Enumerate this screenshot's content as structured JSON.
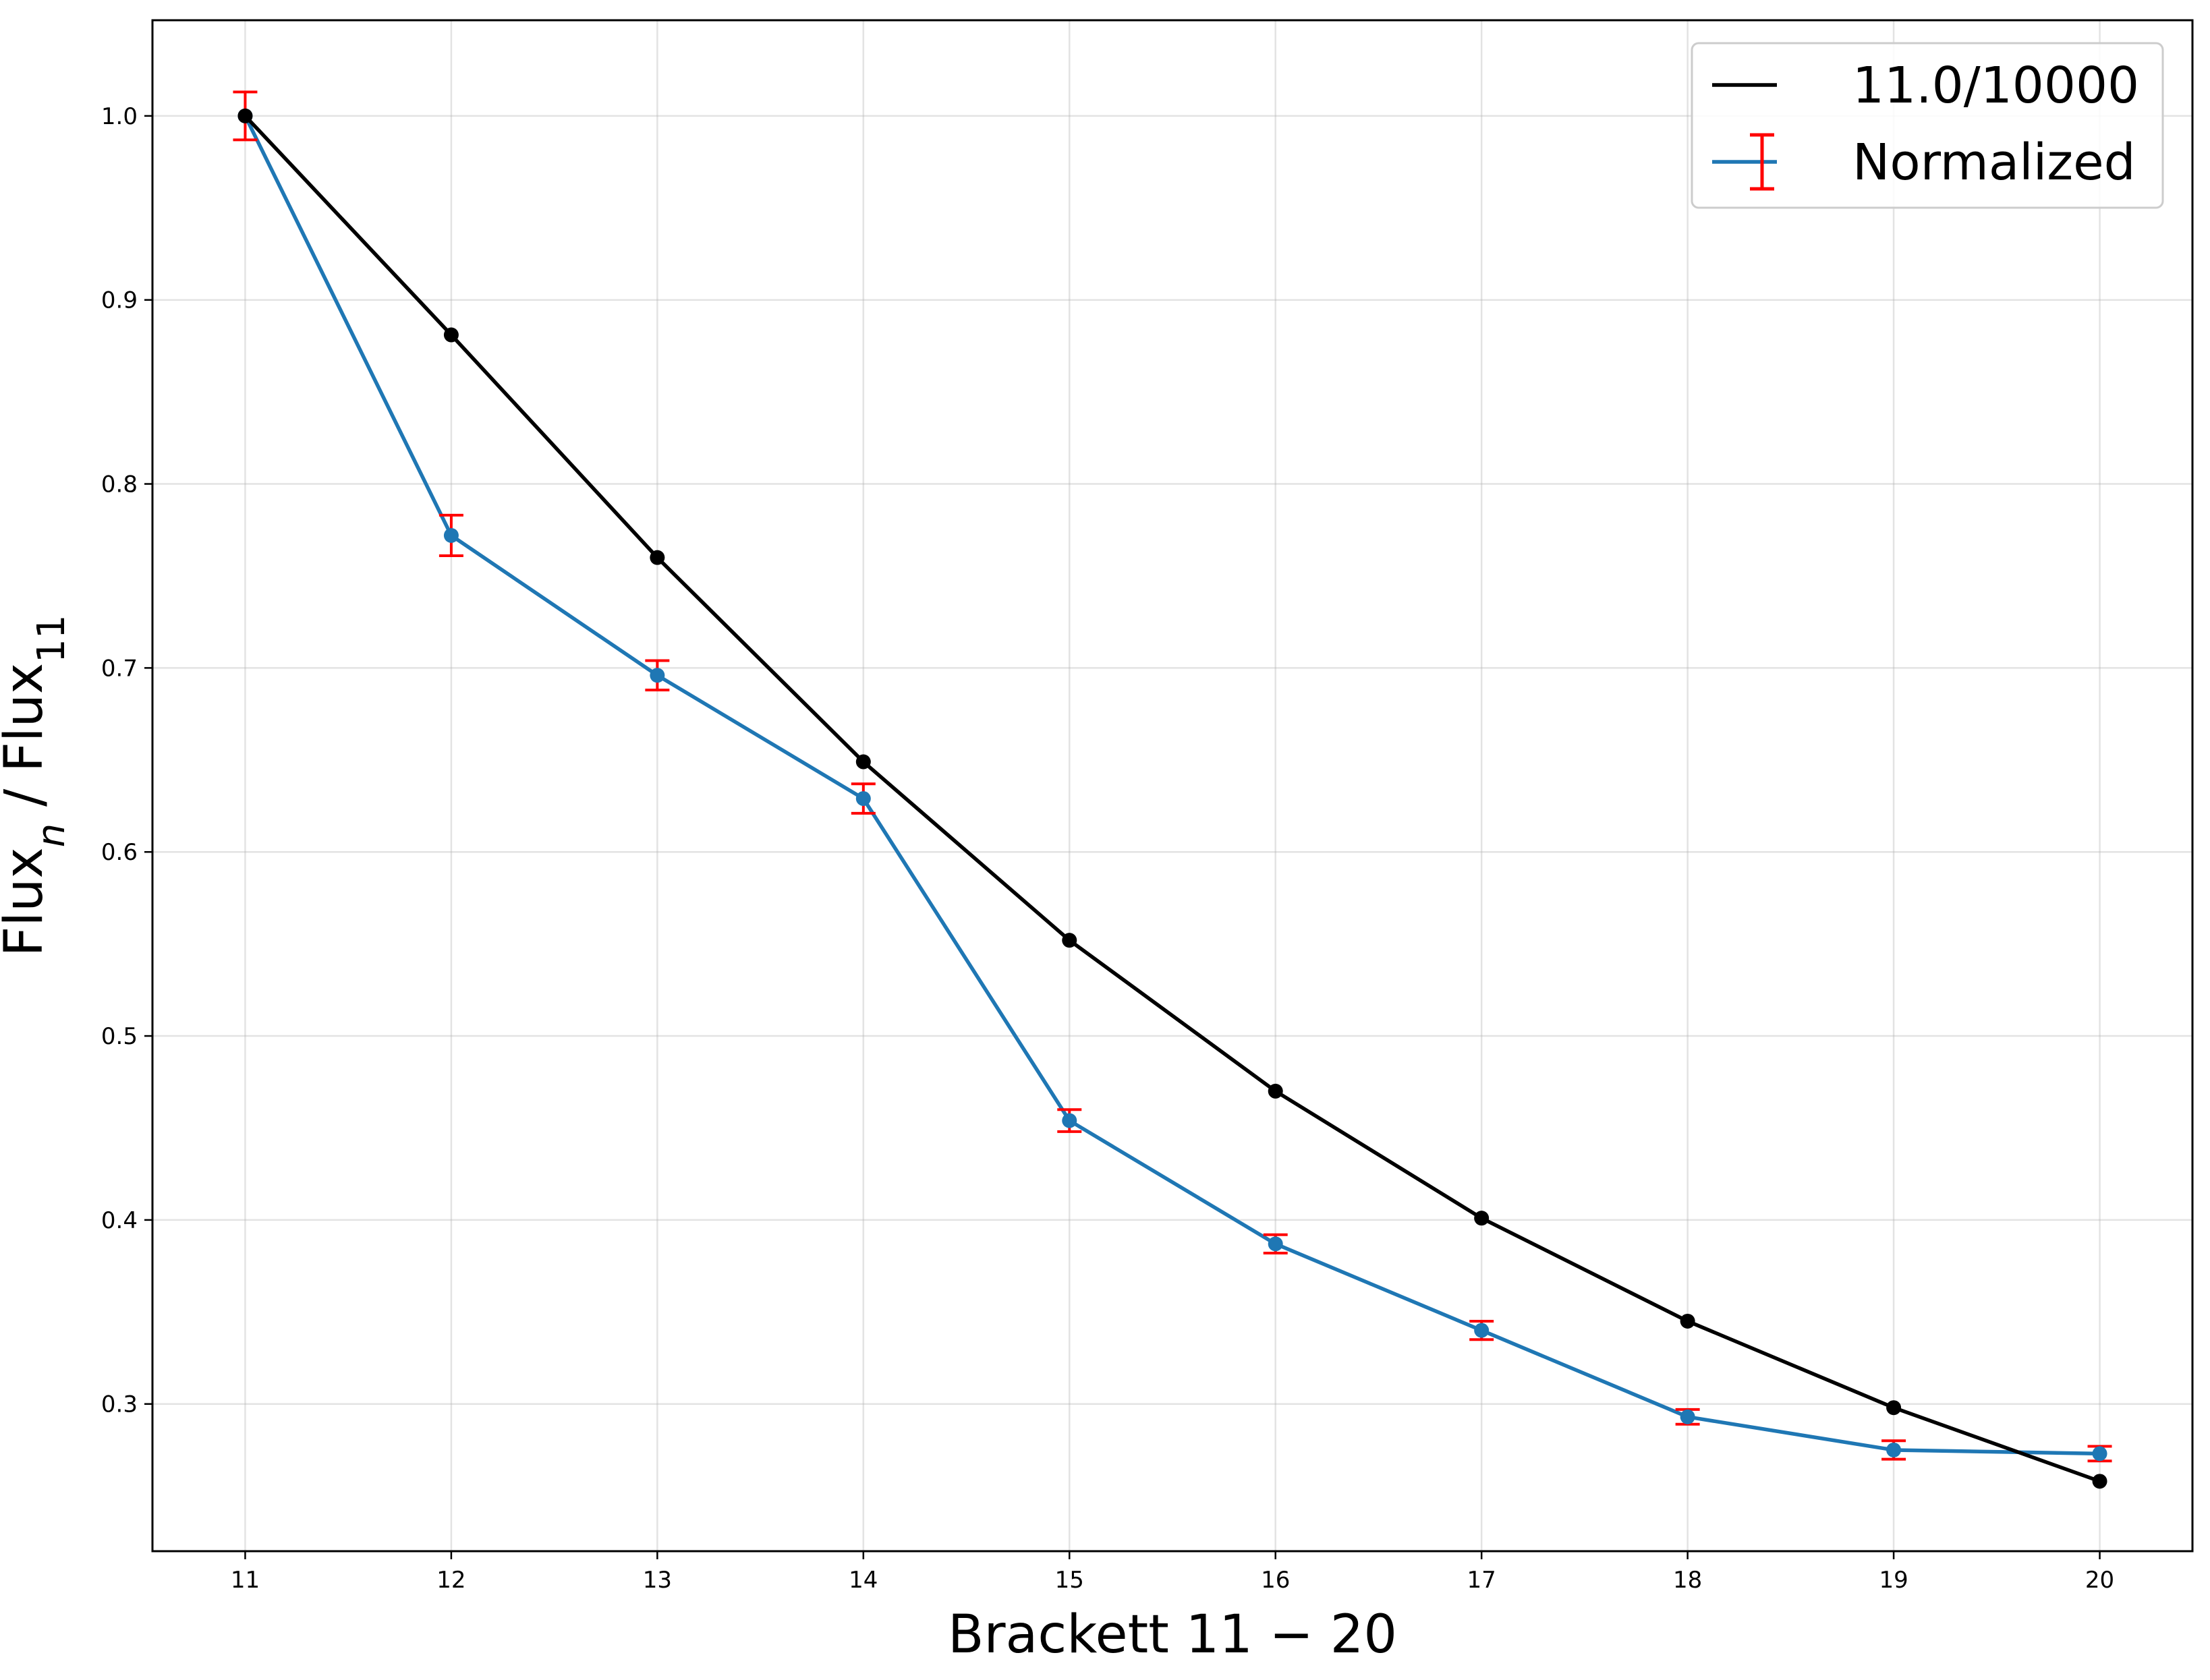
{
  "chart_data": {
    "type": "line",
    "title": "",
    "xlabel": "Brackett 11 − 20",
    "ylabel": {
      "base": "Flux",
      "sub_n": "n",
      "sep": " / ",
      "base2": "Flux",
      "sub_2": "11"
    },
    "x": [
      11,
      12,
      13,
      14,
      15,
      16,
      17,
      18,
      19,
      20
    ],
    "xticks": [
      "11",
      "12",
      "13",
      "14",
      "15",
      "16",
      "17",
      "18",
      "19",
      "20"
    ],
    "yticks": [
      "0.3",
      "0.4",
      "0.5",
      "0.6",
      "0.7",
      "0.8",
      "0.9",
      "1.0"
    ],
    "xlim": [
      10.55,
      20.45
    ],
    "ylim": [
      0.22,
      1.052
    ],
    "grid": true,
    "legend_position": "top-right",
    "series": [
      {
        "name": "11.0/10000",
        "color": "#000000",
        "marker_color": "#000000",
        "values": [
          1.0,
          0.881,
          0.76,
          0.649,
          0.552,
          0.47,
          0.401,
          0.345,
          0.298,
          0.258
        ]
      },
      {
        "name": "Normalized",
        "color": "#1f77b4",
        "marker_color": "#1f77b4",
        "error_color": "#ff0000",
        "values": [
          1.0,
          0.772,
          0.696,
          0.629,
          0.454,
          0.387,
          0.34,
          0.293,
          0.275,
          0.273
        ],
        "errors": [
          0.013,
          0.011,
          0.008,
          0.008,
          0.006,
          0.005,
          0.005,
          0.004,
          0.005,
          0.004
        ]
      }
    ]
  }
}
